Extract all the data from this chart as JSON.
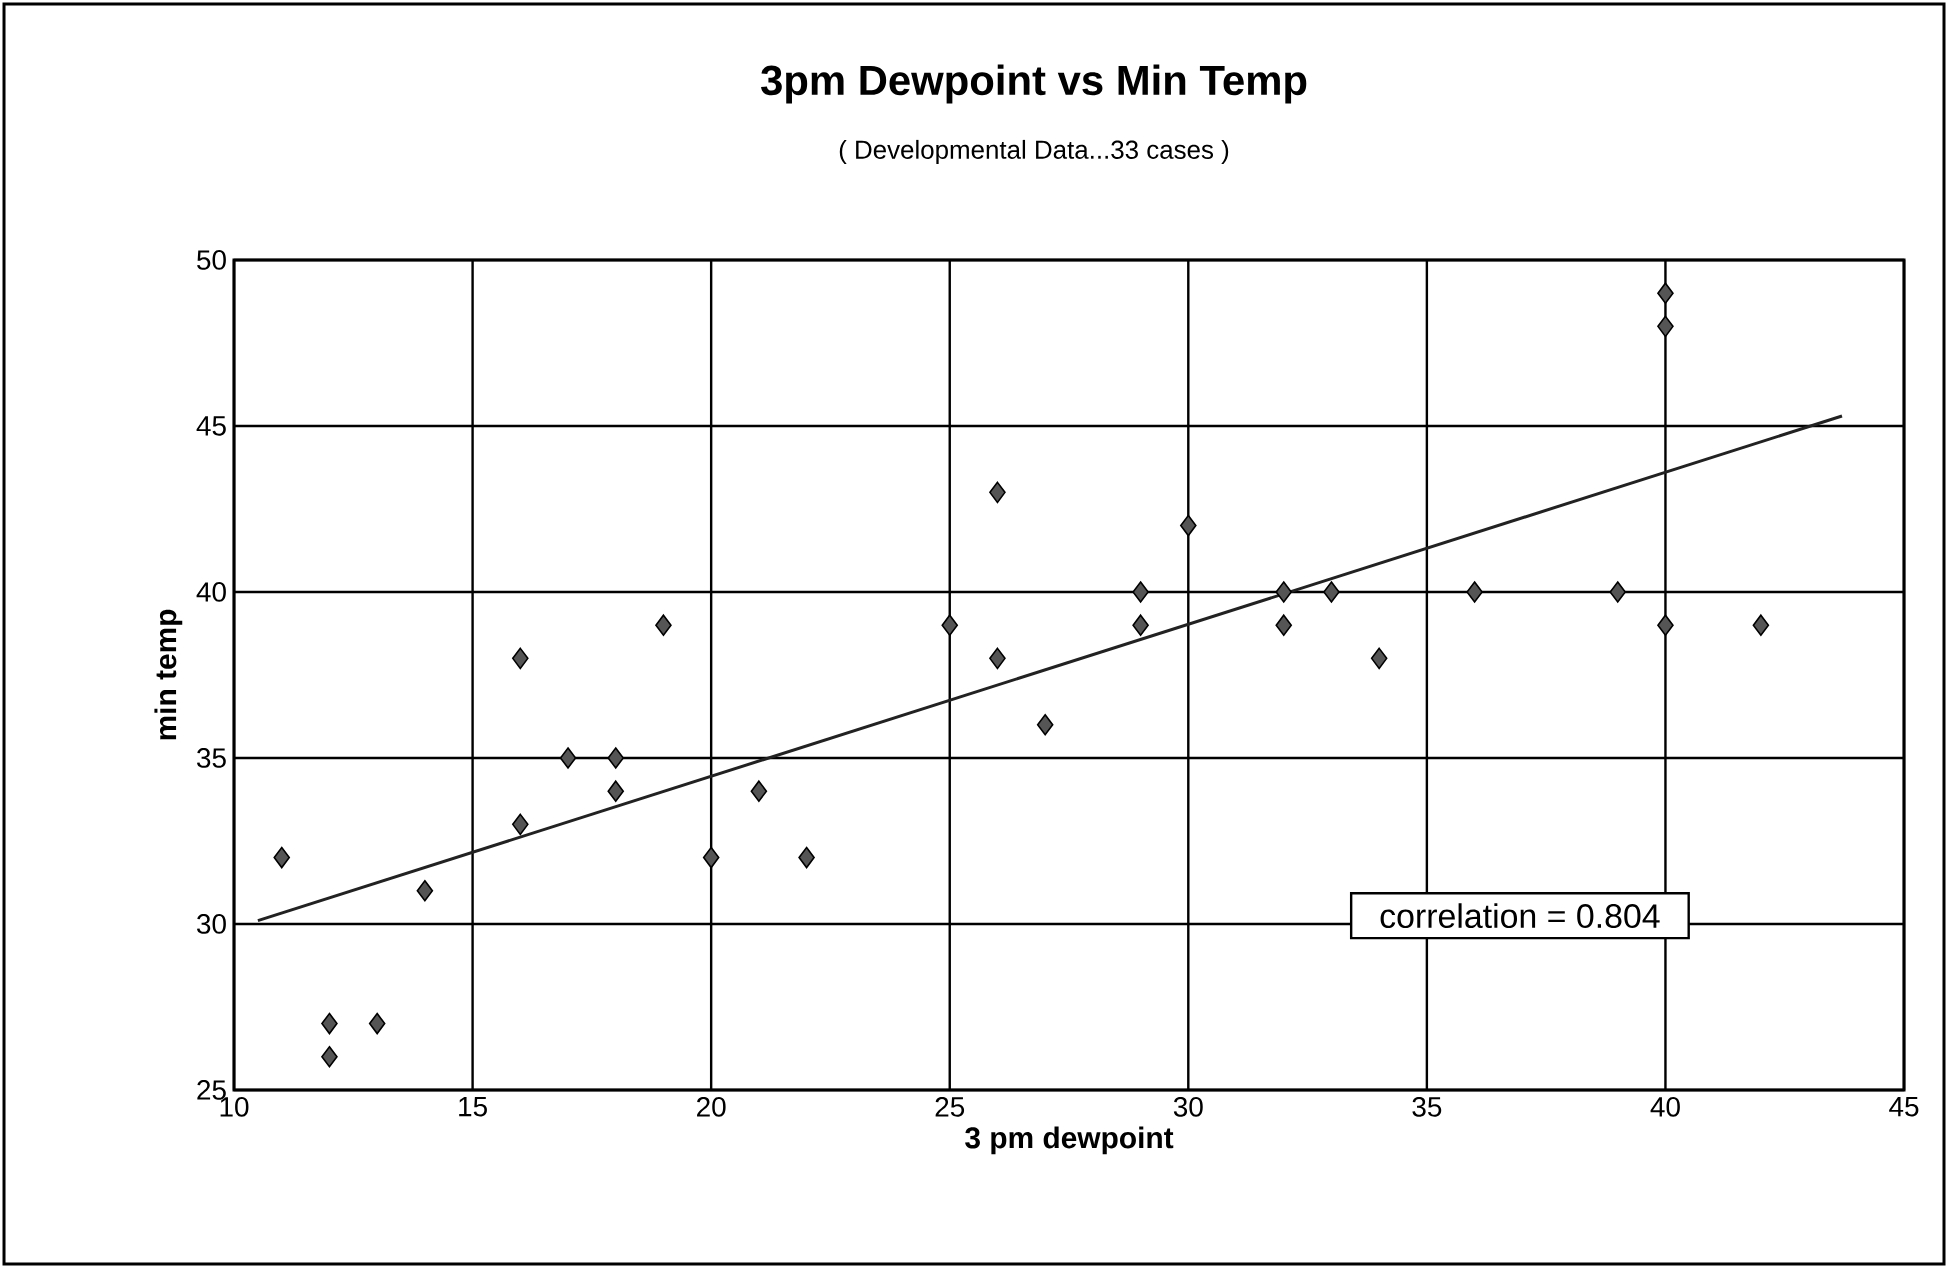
{
  "chart_data": {
    "type": "scatter",
    "title": "3pm Dewpoint vs Min Temp",
    "subtitle": "( Developmental Data...33 cases )",
    "xlabel": "3 pm dewpoint",
    "ylabel": "min temp",
    "x": [
      11,
      12,
      12,
      13,
      14,
      16,
      16,
      17,
      18,
      18,
      19,
      20,
      21,
      22,
      25,
      26,
      26,
      27,
      29,
      29,
      30,
      32,
      32,
      33,
      34,
      36,
      39,
      40,
      40,
      40,
      42
    ],
    "series": [
      {
        "color": "#555555",
        "marker": "diamond",
        "values": [
          32,
          27,
          26,
          27,
          31,
          38,
          33,
          35,
          35,
          34,
          39,
          32,
          34,
          32,
          39,
          43,
          38,
          36,
          40,
          39,
          42,
          40,
          39,
          40,
          38,
          40,
          40,
          49,
          48,
          39,
          39
        ]
      },
      {
        "type": "line",
        "color": "#222222",
        "marker": "none",
        "x": [
          10.5,
          43.7
        ],
        "values": [
          30.1,
          45.3
        ]
      }
    ],
    "annotations": [
      "correlation = 0.804"
    ],
    "xlim": [
      10,
      45
    ],
    "xticks": [
      10,
      15,
      20,
      25,
      30,
      35,
      40,
      45
    ],
    "ylim": [
      25,
      50
    ],
    "yticks": [
      25,
      30,
      35,
      40,
      45,
      50
    ],
    "grid": true
  }
}
